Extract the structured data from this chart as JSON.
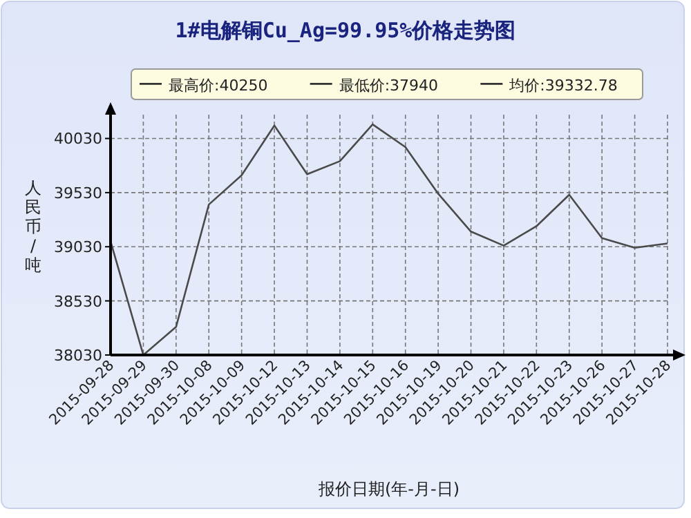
{
  "chart_data": {
    "type": "line",
    "title": "1#电解铜Cu_Ag=99.95%价格走势图",
    "xlabel": "报价日期(年-月-日)",
    "ylabel": "人民币/吨",
    "categories": [
      "2015-09-28",
      "2015-09-29",
      "2015-09-30",
      "2015-10-08",
      "2015-10-09",
      "2015-10-12",
      "2015-10-13",
      "2015-10-14",
      "2015-10-15",
      "2015-10-16",
      "2015-10-19",
      "2015-10-20",
      "2015-10-21",
      "2015-10-22",
      "2015-10-23",
      "2015-10-26",
      "2015-10-27",
      "2015-10-28"
    ],
    "series": [
      {
        "color": "#4a4a4a",
        "values": [
          39080,
          38030,
          38290,
          39420,
          39690,
          40150,
          39700,
          39820,
          40160,
          39950,
          39520,
          39170,
          39040,
          39220,
          39510,
          39110,
          39020,
          39060
        ]
      }
    ],
    "ylim": [
      38030,
      40250
    ],
    "yticks": [
      38030,
      38530,
      39030,
      39530,
      40030
    ],
    "grid": true,
    "line_style": "solid",
    "marker": "none",
    "annotations": [
      "最高价:40250",
      "最低价:37940",
      "均价:39332.78"
    ]
  }
}
